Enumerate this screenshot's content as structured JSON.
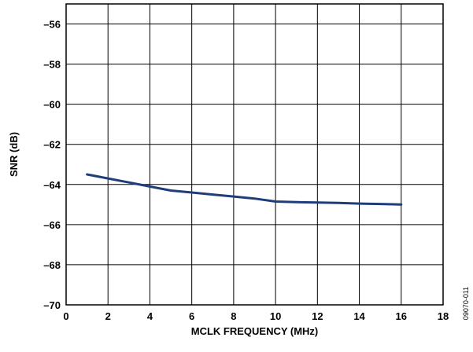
{
  "chart_data": {
    "type": "line",
    "xlabel": "MCLK FREQUENCY (MHz)",
    "ylabel": "SNR (dB)",
    "xlim": [
      0,
      18
    ],
    "ylim": [
      -70,
      -55
    ],
    "x_ticks": [
      0,
      2,
      4,
      6,
      8,
      10,
      12,
      14,
      16,
      18
    ],
    "y_ticks": [
      -70,
      -68,
      -66,
      -64,
      -62,
      -60,
      -58,
      -56
    ],
    "x_tick_labels": [
      "0",
      "2",
      "4",
      "6",
      "8",
      "10",
      "12",
      "14",
      "16",
      "18"
    ],
    "y_tick_labels": [
      "–70",
      "–68",
      "–66",
      "–64",
      "–62",
      "–60",
      "–58",
      "–56"
    ],
    "grid": true,
    "series": [
      {
        "color": "#1f3d7a",
        "x": [
          1,
          2,
          3,
          4,
          5,
          6,
          7,
          8,
          9,
          10,
          11,
          12,
          13,
          14,
          15,
          16
        ],
        "y": [
          -63.5,
          -63.7,
          -63.9,
          -64.1,
          -64.3,
          -64.4,
          -64.5,
          -64.6,
          -64.7,
          -64.85,
          -64.88,
          -64.9,
          -64.92,
          -64.95,
          -64.97,
          -65.0
        ]
      }
    ]
  },
  "figure_id": "09070-011"
}
